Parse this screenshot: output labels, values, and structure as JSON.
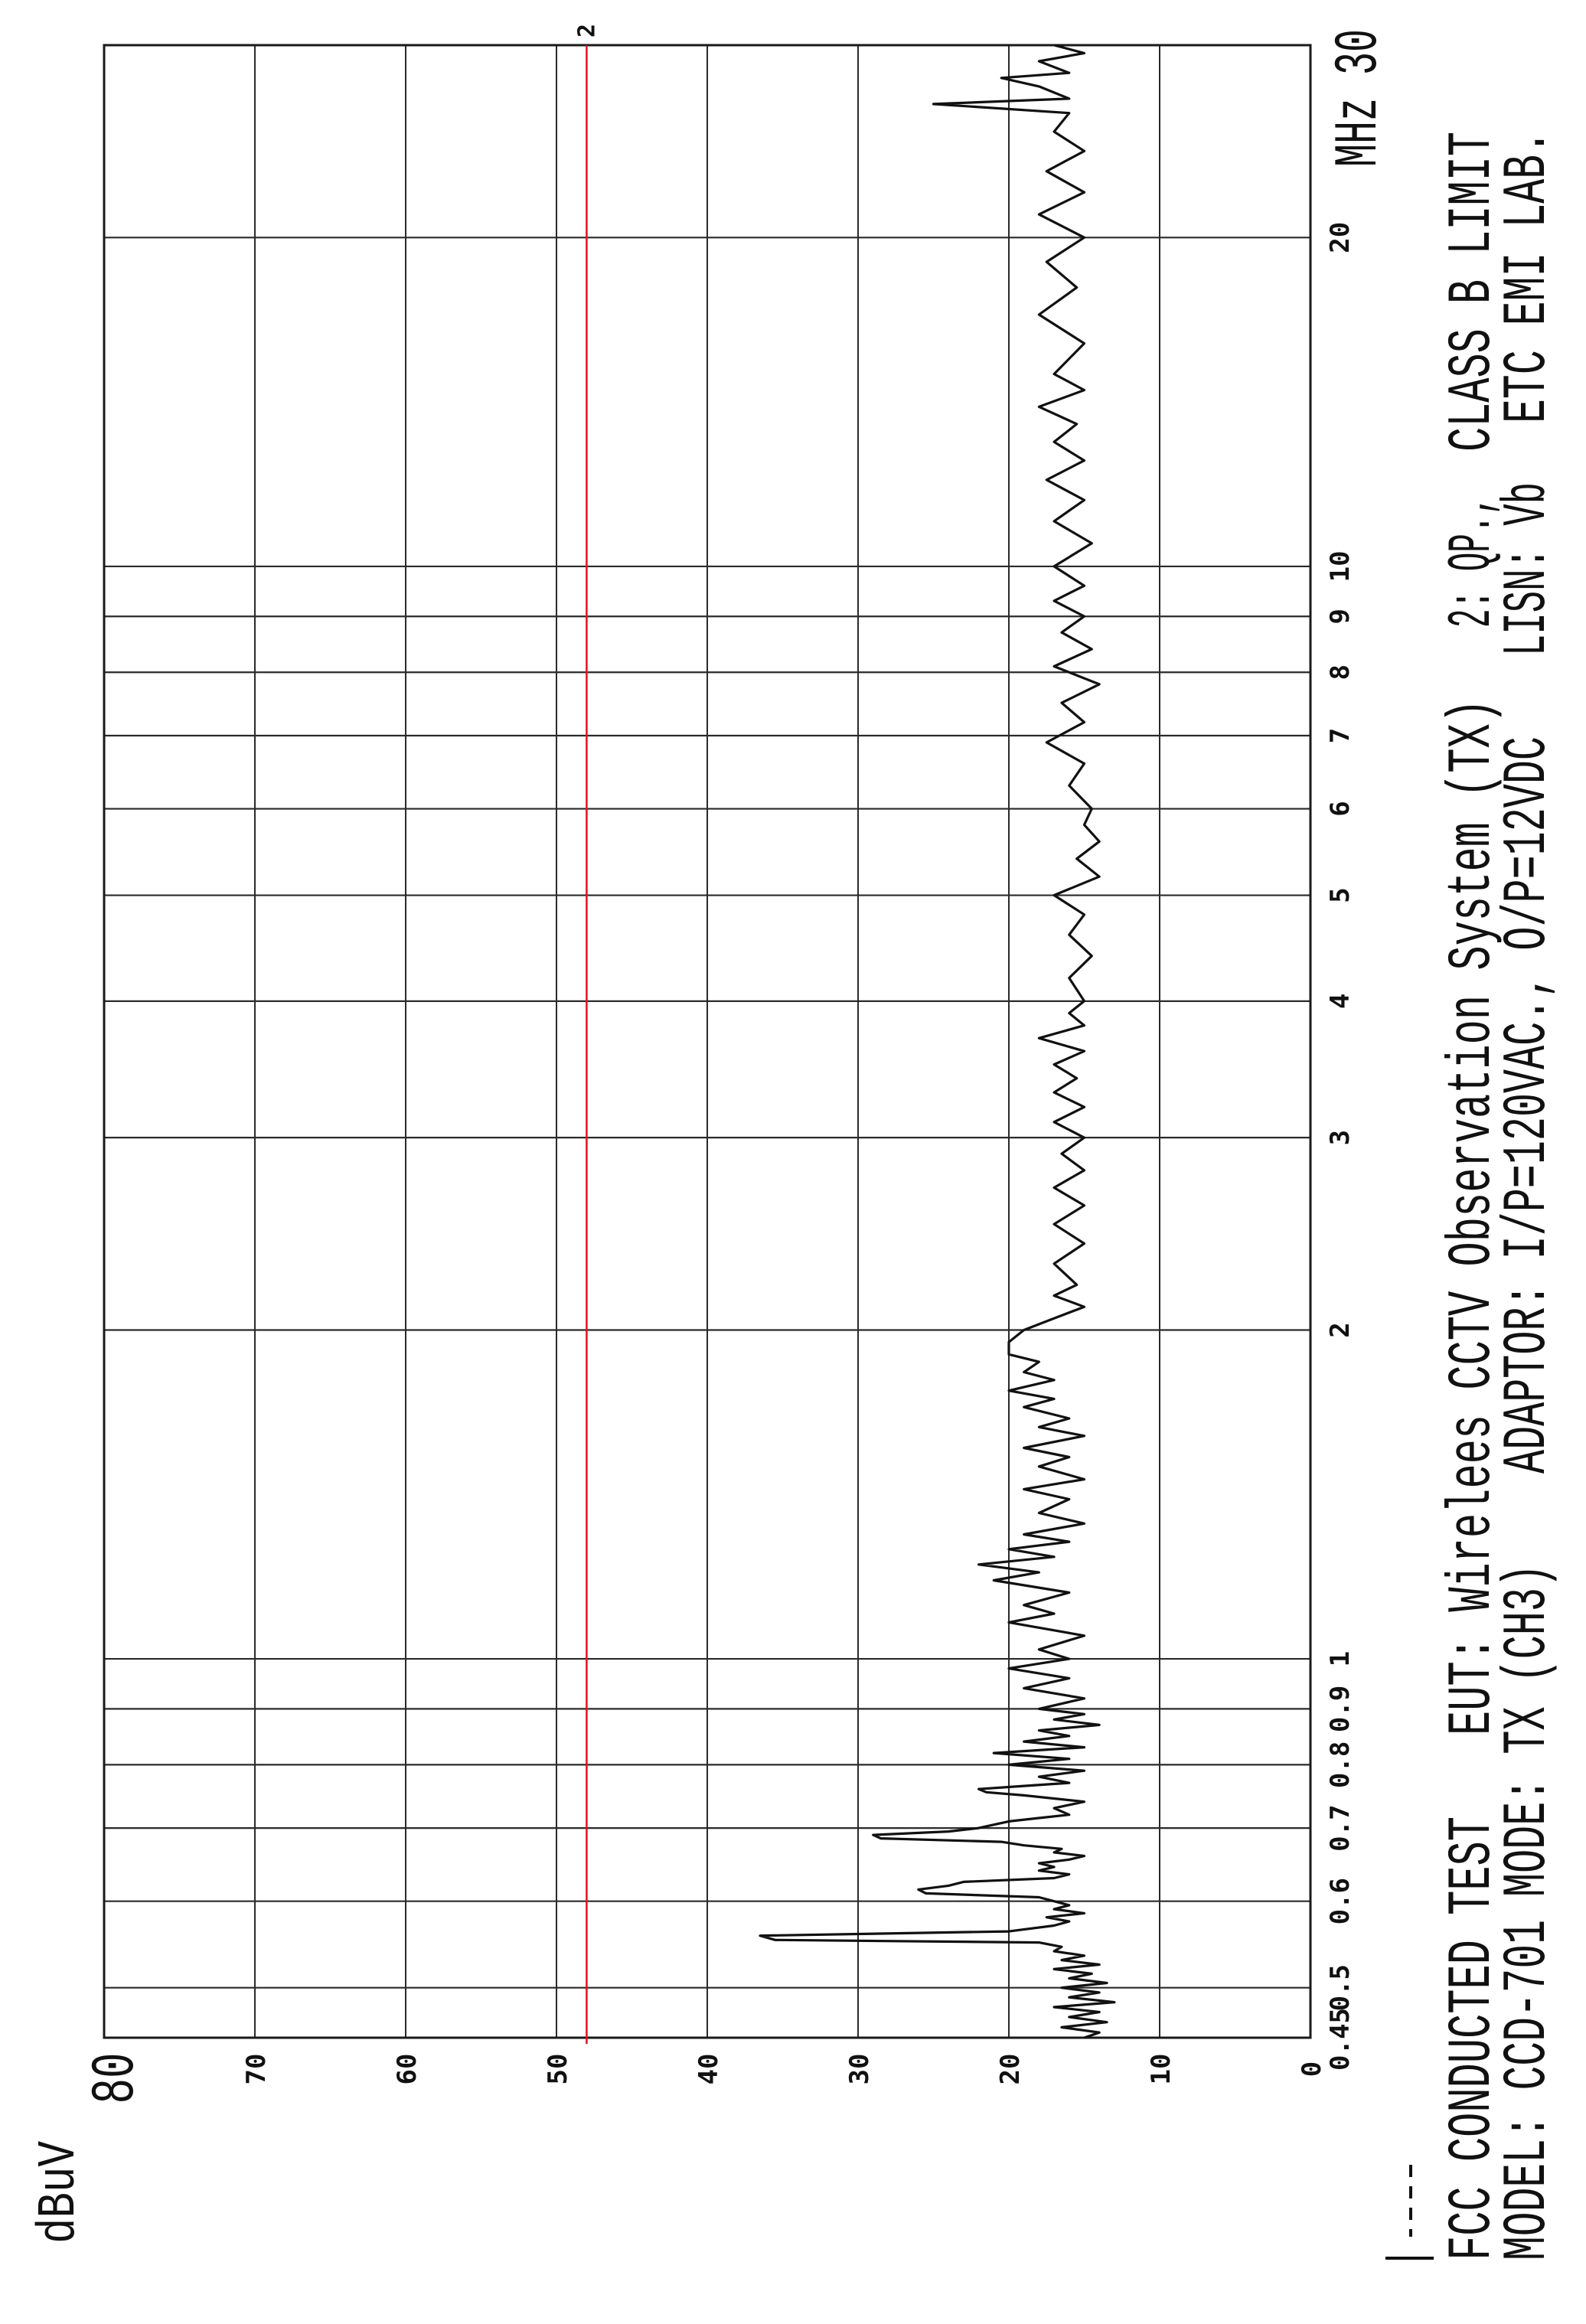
{
  "colors": {
    "trace": "#111111",
    "grid": "#2a2a2a",
    "limit": "#e0141e",
    "background": "#ffffff"
  },
  "header": {
    "line1": {
      "test": "FCC CONDUCTED TEST",
      "eut": "EUT: Wirelees CCTV Observation System (TX)",
      "detector": "2: QP.,",
      "limit": "CLASS B LIMIT"
    },
    "line2": {
      "model": "MODEL: CCD-701",
      "mode": "MODE: TX (CH3)",
      "adaptor": "ADAPTOR: I/P=120VAC., O/P=12VDC",
      "lisn": "LISN: Vb",
      "lab": "ETC EMI LAB."
    }
  },
  "chart_data": {
    "type": "line",
    "orientation": "rotated 90° counter-clockwise (frequency runs bottom-to-top, level runs right-to-left)",
    "xlabel": "MHz",
    "ylabel": "dBuV",
    "x_scale": "log",
    "xlim": [
      0.45,
      30
    ],
    "ylim": [
      0,
      80
    ],
    "grid": true,
    "x_ticks": [
      {
        "value": 0.45,
        "label": "0.45"
      },
      {
        "value": 0.5,
        "label": "0.5"
      },
      {
        "value": 0.6,
        "label": "0.6"
      },
      {
        "value": 0.7,
        "label": "0.7"
      },
      {
        "value": 0.8,
        "label": "0.8"
      },
      {
        "value": 0.9,
        "label": "0.9"
      },
      {
        "value": 1,
        "label": "1"
      },
      {
        "value": 2,
        "label": "2"
      },
      {
        "value": 3,
        "label": "3"
      },
      {
        "value": 4,
        "label": "4"
      },
      {
        "value": 5,
        "label": "5"
      },
      {
        "value": 6,
        "label": "6"
      },
      {
        "value": 7,
        "label": "7"
      },
      {
        "value": 8,
        "label": "8"
      },
      {
        "value": 9,
        "label": "9"
      },
      {
        "value": 10,
        "label": "10"
      },
      {
        "value": 20,
        "label": "20"
      },
      {
        "value": 30,
        "label": "30"
      }
    ],
    "x_unit_label": "MHz 30",
    "y_ticks": [
      {
        "value": 0,
        "label": "0"
      },
      {
        "value": 10,
        "label": "10"
      },
      {
        "value": 20,
        "label": "20"
      },
      {
        "value": 30,
        "label": "30"
      },
      {
        "value": 40,
        "label": "40"
      },
      {
        "value": 50,
        "label": "50"
      },
      {
        "value": 60,
        "label": "60"
      },
      {
        "value": 70,
        "label": "70"
      },
      {
        "value": 80,
        "label": "80"
      }
    ],
    "limit_line": {
      "label": "2",
      "value": 48
    },
    "series": [
      {
        "points": [
          [
            0.45,
            15
          ],
          [
            0.455,
            14
          ],
          [
            0.46,
            16.5
          ],
          [
            0.465,
            13.5
          ],
          [
            0.47,
            16
          ],
          [
            0.475,
            14
          ],
          [
            0.48,
            17
          ],
          [
            0.485,
            13
          ],
          [
            0.49,
            16
          ],
          [
            0.495,
            14
          ],
          [
            0.5,
            16.5
          ],
          [
            0.505,
            13.5
          ],
          [
            0.51,
            16
          ],
          [
            0.515,
            14.5
          ],
          [
            0.52,
            17
          ],
          [
            0.525,
            14
          ],
          [
            0.53,
            16.5
          ],
          [
            0.535,
            15
          ],
          [
            0.54,
            17
          ],
          [
            0.545,
            16.5
          ],
          [
            0.55,
            18
          ],
          [
            0.553,
            35.5
          ],
          [
            0.558,
            36.5
          ],
          [
            0.563,
            20
          ],
          [
            0.57,
            17
          ],
          [
            0.575,
            16
          ],
          [
            0.58,
            17.5
          ],
          [
            0.585,
            15
          ],
          [
            0.59,
            17
          ],
          [
            0.595,
            16
          ],
          [
            0.6,
            17
          ],
          [
            0.605,
            18
          ],
          [
            0.61,
            25.5
          ],
          [
            0.615,
            26
          ],
          [
            0.62,
            24
          ],
          [
            0.625,
            23
          ],
          [
            0.63,
            17
          ],
          [
            0.635,
            16
          ],
          [
            0.64,
            18
          ],
          [
            0.645,
            17
          ],
          [
            0.65,
            18
          ],
          [
            0.655,
            16
          ],
          [
            0.66,
            15
          ],
          [
            0.665,
            17
          ],
          [
            0.67,
            16.5
          ],
          [
            0.675,
            19
          ],
          [
            0.68,
            20.5
          ],
          [
            0.685,
            28.5
          ],
          [
            0.69,
            29
          ],
          [
            0.695,
            24
          ],
          [
            0.7,
            22
          ],
          [
            0.71,
            20
          ],
          [
            0.715,
            18
          ],
          [
            0.72,
            16
          ],
          [
            0.73,
            17
          ],
          [
            0.74,
            15
          ],
          [
            0.75,
            19
          ],
          [
            0.755,
            21.5
          ],
          [
            0.76,
            22
          ],
          [
            0.765,
            19
          ],
          [
            0.77,
            16
          ],
          [
            0.78,
            18
          ],
          [
            0.79,
            15
          ],
          [
            0.8,
            20
          ],
          [
            0.81,
            16
          ],
          [
            0.82,
            21
          ],
          [
            0.83,
            15
          ],
          [
            0.84,
            19
          ],
          [
            0.85,
            16
          ],
          [
            0.86,
            18
          ],
          [
            0.87,
            14
          ],
          [
            0.88,
            17
          ],
          [
            0.89,
            15
          ],
          [
            0.9,
            18
          ],
          [
            0.92,
            15
          ],
          [
            0.94,
            19
          ],
          [
            0.96,
            16
          ],
          [
            0.98,
            20
          ],
          [
            1.0,
            16
          ],
          [
            1.02,
            18
          ],
          [
            1.05,
            15
          ],
          [
            1.08,
            20
          ],
          [
            1.1,
            17
          ],
          [
            1.12,
            19
          ],
          [
            1.15,
            16
          ],
          [
            1.18,
            21
          ],
          [
            1.2,
            18
          ],
          [
            1.22,
            22
          ],
          [
            1.24,
            17
          ],
          [
            1.26,
            20
          ],
          [
            1.28,
            16
          ],
          [
            1.3,
            19
          ],
          [
            1.33,
            15
          ],
          [
            1.36,
            18
          ],
          [
            1.4,
            16
          ],
          [
            1.43,
            19
          ],
          [
            1.46,
            15
          ],
          [
            1.5,
            18
          ],
          [
            1.53,
            16
          ],
          [
            1.56,
            19
          ],
          [
            1.6,
            15
          ],
          [
            1.63,
            18
          ],
          [
            1.66,
            16
          ],
          [
            1.7,
            19
          ],
          [
            1.73,
            17
          ],
          [
            1.76,
            20
          ],
          [
            1.8,
            17
          ],
          [
            1.83,
            19
          ],
          [
            1.87,
            18
          ],
          [
            1.9,
            20
          ],
          [
            1.95,
            20
          ],
          [
            2.0,
            19
          ],
          [
            2.05,
            17
          ],
          [
            2.1,
            15
          ],
          [
            2.15,
            17
          ],
          [
            2.2,
            15.5
          ],
          [
            2.3,
            17
          ],
          [
            2.4,
            15
          ],
          [
            2.5,
            17
          ],
          [
            2.6,
            15
          ],
          [
            2.7,
            17
          ],
          [
            2.8,
            15
          ],
          [
            2.9,
            16.5
          ],
          [
            3.0,
            15
          ],
          [
            3.1,
            17
          ],
          [
            3.2,
            15
          ],
          [
            3.3,
            17
          ],
          [
            3.4,
            15.5
          ],
          [
            3.5,
            17
          ],
          [
            3.6,
            15
          ],
          [
            3.7,
            18
          ],
          [
            3.8,
            15
          ],
          [
            3.9,
            16
          ],
          [
            4.0,
            15
          ],
          [
            4.2,
            16
          ],
          [
            4.4,
            14.5
          ],
          [
            4.6,
            16
          ],
          [
            4.8,
            15
          ],
          [
            5.0,
            17
          ],
          [
            5.2,
            14
          ],
          [
            5.4,
            15.5
          ],
          [
            5.6,
            14
          ],
          [
            5.8,
            15
          ],
          [
            6.0,
            14.5
          ],
          [
            6.3,
            16
          ],
          [
            6.6,
            15
          ],
          [
            6.9,
            17.5
          ],
          [
            7.2,
            15
          ],
          [
            7.5,
            16.5
          ],
          [
            7.8,
            14
          ],
          [
            8.1,
            17
          ],
          [
            8.4,
            14.5
          ],
          [
            8.7,
            16.5
          ],
          [
            9.0,
            15
          ],
          [
            9.3,
            17
          ],
          [
            9.6,
            15
          ],
          [
            10,
            17
          ],
          [
            10.5,
            14.5
          ],
          [
            11,
            17
          ],
          [
            11.5,
            15
          ],
          [
            12,
            17.5
          ],
          [
            12.5,
            15
          ],
          [
            13,
            17
          ],
          [
            13.5,
            15.5
          ],
          [
            14,
            18
          ],
          [
            14.5,
            15
          ],
          [
            15,
            17
          ],
          [
            16,
            15
          ],
          [
            17,
            18
          ],
          [
            18,
            15.5
          ],
          [
            19,
            17.5
          ],
          [
            20,
            15
          ],
          [
            21,
            18
          ],
          [
            22,
            15
          ],
          [
            23,
            17.5
          ],
          [
            24,
            15
          ],
          [
            25,
            17
          ],
          [
            26,
            16
          ],
          [
            26.5,
            25
          ],
          [
            26.8,
            16
          ],
          [
            27.5,
            18
          ],
          [
            28,
            20.5
          ],
          [
            28.3,
            16
          ],
          [
            29,
            18
          ],
          [
            29.5,
            15
          ],
          [
            30,
            17
          ]
        ]
      }
    ]
  }
}
